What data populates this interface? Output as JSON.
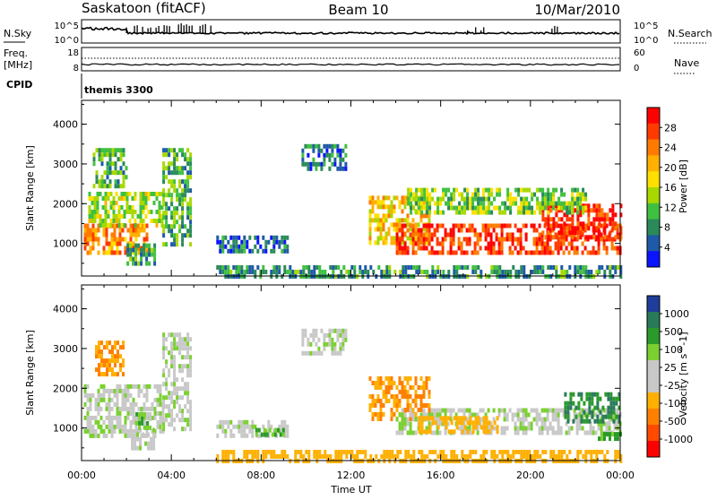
{
  "header": {
    "station": "Saskatoon (fitACF)",
    "beam": "Beam 10",
    "date": "10/Mar/2010"
  },
  "panels": {
    "nsky_label": "N.Sky",
    "nsearch_label": "N.Search",
    "freq_label_1": "Freq.",
    "freq_label_2": "[MHz]",
    "nave_label": "Nave",
    "cpid_label": "CPID",
    "cpid_value": "themis 3300",
    "nsky_ticks": [
      "10^5",
      "10^0"
    ],
    "nsearch_ticks": [
      "10^5",
      "10^0"
    ],
    "freq_ticks": [
      "18",
      "8"
    ],
    "nave_ticks": [
      "60",
      "0"
    ]
  },
  "power_colorbar": {
    "label": "Power [dB]",
    "ticks": [
      "28",
      "24",
      "20",
      "16",
      "12",
      "8",
      "4"
    ],
    "colors": [
      "#ff0000",
      "#ff3a00",
      "#ff7a00",
      "#ffb000",
      "#ffe000",
      "#a8d800",
      "#40c040",
      "#2a8a5a",
      "#1e5aa8",
      "#0a14ff"
    ]
  },
  "velocity_colorbar": {
    "label": "Velocity [m s^-1]",
    "ticks": [
      "1000",
      "500",
      "100",
      "25",
      "-25",
      "-100",
      "-500",
      "-1000"
    ],
    "colors": [
      "#1f3d9a",
      "#2a7a5a",
      "#2a9a2a",
      "#7ad030",
      "#c8c8c8",
      "#c8c8c8",
      "#ffb000",
      "#ff8000",
      "#ff4a00",
      "#ff0000"
    ]
  },
  "chart_data": [
    {
      "type": "heatmap",
      "name": "power",
      "title": "",
      "ylabel": "Slant Range [km]",
      "xlabel": "",
      "ylim": [
        180,
        4600
      ],
      "yticks": [
        1000,
        2000,
        3000,
        4000
      ],
      "xticks": [
        "00:00",
        "04:00",
        "08:00",
        "12:00",
        "16:00",
        "20:00",
        "00:00"
      ],
      "xlim_hours": [
        0,
        24
      ],
      "regions": [
        {
          "t0": 0.1,
          "t1": 2.9,
          "r0": 750,
          "r1": 1500,
          "level": 22
        },
        {
          "t0": 0.3,
          "t1": 3.6,
          "r0": 1500,
          "r1": 2300,
          "level": 14
        },
        {
          "t0": 0.5,
          "t1": 2.0,
          "r0": 2400,
          "r1": 3400,
          "level": 10
        },
        {
          "t0": 3.6,
          "t1": 4.8,
          "r0": 1000,
          "r1": 3400,
          "level": 10
        },
        {
          "t0": 2.0,
          "t1": 3.2,
          "r0": 500,
          "r1": 1000,
          "level": 9
        },
        {
          "t0": 6.0,
          "t1": 9.2,
          "r0": 820,
          "r1": 1200,
          "level": 6
        },
        {
          "t0": 9.8,
          "t1": 11.8,
          "r0": 2900,
          "r1": 3500,
          "level": 6
        },
        {
          "t0": 12.8,
          "t1": 15.5,
          "r0": 1000,
          "r1": 2200,
          "level": 18
        },
        {
          "t0": 14.0,
          "t1": 24.0,
          "r0": 800,
          "r1": 1500,
          "level": 26
        },
        {
          "t0": 20.5,
          "t1": 24.0,
          "r0": 1200,
          "r1": 2000,
          "level": 27
        },
        {
          "t0": 14.5,
          "t1": 22.5,
          "r0": 1800,
          "r1": 2400,
          "level": 12
        },
        {
          "t0": 6.0,
          "t1": 24.0,
          "r0": 180,
          "r1": 450,
          "level": 8
        }
      ]
    },
    {
      "type": "heatmap",
      "name": "velocity",
      "title": "",
      "ylabel": "Slant Range [km]",
      "xlabel": "Time UT",
      "ylim": [
        180,
        4600
      ],
      "yticks": [
        1000,
        2000,
        3000,
        4000
      ],
      "xticks": [
        "00:00",
        "04:00",
        "08:00",
        "12:00",
        "16:00",
        "20:00",
        "00:00"
      ],
      "xlim_hours": [
        0,
        24
      ],
      "regions": [
        {
          "t0": 0.1,
          "t1": 3.6,
          "r0": 800,
          "r1": 2100,
          "value": 0
        },
        {
          "t0": 0.6,
          "t1": 1.8,
          "r0": 2400,
          "r1": 3200,
          "value": -300
        },
        {
          "t0": 2.2,
          "t1": 3.2,
          "r0": 500,
          "r1": 1000,
          "value": 0
        },
        {
          "t0": 2.4,
          "t1": 3.0,
          "r0": 1000,
          "r1": 1400,
          "value": 60
        },
        {
          "t0": 3.6,
          "t1": 4.8,
          "r0": 1000,
          "r1": 3400,
          "value": 0
        },
        {
          "t0": 6.0,
          "t1": 9.2,
          "r0": 820,
          "r1": 1200,
          "value": 0
        },
        {
          "t0": 7.5,
          "t1": 9.0,
          "r0": 800,
          "r1": 1000,
          "value": 80
        },
        {
          "t0": 9.8,
          "t1": 11.8,
          "r0": 2900,
          "r1": 3500,
          "value": 0
        },
        {
          "t0": 12.8,
          "t1": 15.5,
          "r0": 1200,
          "r1": 2300,
          "value": -300
        },
        {
          "t0": 14.0,
          "t1": 24.0,
          "r0": 900,
          "r1": 1500,
          "value": 0
        },
        {
          "t0": 15.0,
          "t1": 18.5,
          "r0": 900,
          "r1": 1300,
          "value": -150
        },
        {
          "t0": 21.5,
          "t1": 24.0,
          "r0": 1200,
          "r1": 1900,
          "value": 300
        },
        {
          "t0": 23.0,
          "t1": 24.0,
          "r0": 700,
          "r1": 900,
          "value": 80
        },
        {
          "t0": 6.0,
          "t1": 24.0,
          "r0": 180,
          "r1": 450,
          "value": -150
        }
      ]
    }
  ]
}
